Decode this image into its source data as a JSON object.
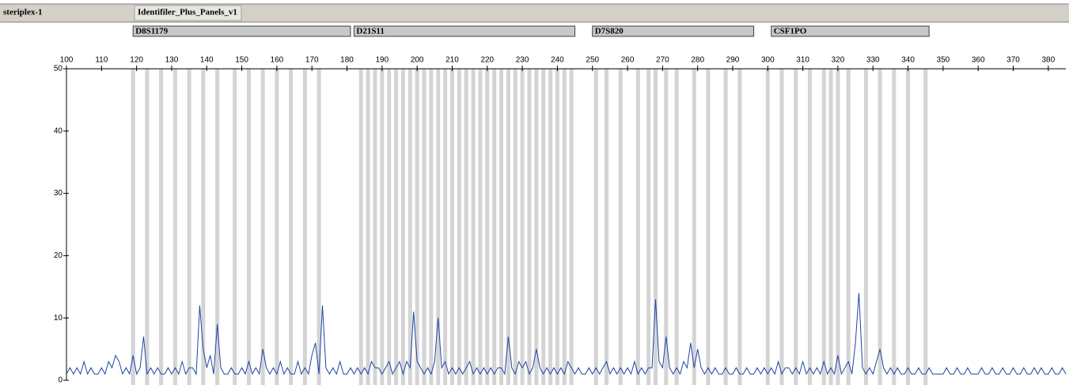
{
  "header": {
    "sample": "steriplex-1",
    "panel": "Identifiler_Plus_Panels_v1"
  },
  "chart_data": {
    "type": "line",
    "color": "#1f45a3",
    "xlim": [
      100,
      385
    ],
    "xticks": [
      100,
      110,
      120,
      130,
      140,
      150,
      160,
      170,
      180,
      190,
      200,
      210,
      220,
      230,
      240,
      250,
      260,
      270,
      280,
      290,
      300,
      310,
      320,
      330,
      340,
      350,
      360,
      370,
      380
    ],
    "ylim": [
      0,
      50
    ],
    "yticks": [
      0,
      10,
      20,
      30,
      40,
      50
    ],
    "bin_color": "#d4d4d4",
    "markers": [
      {
        "name": "D8S1179",
        "range": [
          119,
          181
        ],
        "bins": [
          119,
          123,
          127,
          131,
          135,
          139,
          143,
          148,
          152,
          156,
          160,
          164,
          168,
          172
        ]
      },
      {
        "name": "D21S11",
        "range": [
          182,
          245
        ],
        "bins": [
          184,
          186,
          188,
          190,
          192,
          194,
          196,
          198,
          200,
          202,
          204,
          206,
          208,
          210,
          212,
          214,
          216,
          218,
          220,
          222,
          224,
          226,
          228,
          230,
          232,
          234,
          236,
          238,
          240,
          242,
          244
        ]
      },
      {
        "name": "D7S820",
        "range": [
          250,
          296
        ],
        "bins": [
          251,
          254,
          258,
          263,
          266,
          268,
          271,
          274,
          279,
          283,
          288,
          292
        ]
      },
      {
        "name": "CSF1PO",
        "range": [
          301,
          346
        ],
        "bins": [
          300,
          304,
          308,
          312,
          316,
          318,
          320,
          323,
          328,
          332,
          336,
          340,
          345
        ]
      }
    ],
    "x": [
      100,
      101,
      102,
      103,
      104,
      105,
      106,
      107,
      108,
      109,
      110,
      111,
      112,
      113,
      114,
      115,
      116,
      117,
      118,
      119,
      120,
      121,
      122,
      123,
      124,
      125,
      126,
      127,
      128,
      129,
      130,
      131,
      132,
      133,
      134,
      135,
      136,
      137,
      138,
      139,
      140,
      141,
      142,
      143,
      144,
      145,
      146,
      147,
      148,
      149,
      150,
      151,
      152,
      153,
      154,
      155,
      156,
      157,
      158,
      159,
      160,
      161,
      162,
      163,
      164,
      165,
      166,
      167,
      168,
      169,
      170,
      171,
      172,
      173,
      174,
      175,
      176,
      177,
      178,
      179,
      180,
      181,
      182,
      183,
      184,
      185,
      186,
      187,
      188,
      189,
      190,
      191,
      192,
      193,
      194,
      195,
      196,
      197,
      198,
      199,
      200,
      201,
      202,
      203,
      204,
      205,
      206,
      207,
      208,
      209,
      210,
      211,
      212,
      213,
      214,
      215,
      216,
      217,
      218,
      219,
      220,
      221,
      222,
      223,
      224,
      225,
      226,
      227,
      228,
      229,
      230,
      231,
      232,
      233,
      234,
      235,
      236,
      237,
      238,
      239,
      240,
      241,
      242,
      243,
      244,
      245,
      246,
      247,
      248,
      249,
      250,
      251,
      252,
      253,
      254,
      255,
      256,
      257,
      258,
      259,
      260,
      261,
      262,
      263,
      264,
      265,
      266,
      267,
      268,
      269,
      270,
      271,
      272,
      273,
      274,
      275,
      276,
      277,
      278,
      279,
      280,
      281,
      282,
      283,
      284,
      285,
      286,
      287,
      288,
      289,
      290,
      291,
      292,
      293,
      294,
      295,
      296,
      297,
      298,
      299,
      300,
      301,
      302,
      303,
      304,
      305,
      306,
      307,
      308,
      309,
      310,
      311,
      312,
      313,
      314,
      315,
      316,
      317,
      318,
      319,
      320,
      321,
      322,
      323,
      324,
      325,
      326,
      327,
      328,
      329,
      330,
      331,
      332,
      333,
      334,
      335,
      336,
      337,
      338,
      339,
      340,
      341,
      342,
      343,
      344,
      345,
      346,
      347,
      348,
      349,
      350,
      351,
      352,
      353,
      354,
      355,
      356,
      357,
      358,
      359,
      360,
      361,
      362,
      363,
      364,
      365,
      366,
      367,
      368,
      369,
      370,
      371,
      372,
      373,
      374,
      375,
      376,
      377,
      378,
      379,
      380,
      381,
      382,
      383,
      384,
      385
    ],
    "values": [
      1,
      2,
      1,
      2,
      1,
      3,
      1,
      2,
      1,
      1,
      2,
      1,
      3,
      2,
      4,
      3,
      1,
      2,
      1,
      4,
      1,
      2,
      7,
      1,
      2,
      1,
      2,
      1,
      1,
      2,
      1,
      2,
      1,
      3,
      1,
      2,
      2,
      1,
      12,
      5,
      2,
      4,
      1,
      9,
      2,
      1,
      1,
      2,
      1,
      1,
      2,
      1,
      3,
      1,
      2,
      1,
      5,
      2,
      1,
      2,
      1,
      3,
      1,
      2,
      1,
      1,
      3,
      1,
      2,
      1,
      4,
      6,
      1,
      12,
      2,
      1,
      2,
      1,
      3,
      1,
      1,
      2,
      1,
      2,
      1,
      2,
      1,
      3,
      2,
      2,
      1,
      2,
      3,
      1,
      2,
      3,
      1,
      3,
      2,
      11,
      3,
      2,
      1,
      2,
      1,
      3,
      10,
      2,
      3,
      1,
      2,
      1,
      2,
      1,
      2,
      3,
      1,
      2,
      1,
      2,
      1,
      2,
      1,
      2,
      2,
      1,
      7,
      2,
      1,
      3,
      2,
      3,
      1,
      2,
      5,
      2,
      1,
      2,
      1,
      2,
      1,
      2,
      1,
      3,
      2,
      1,
      2,
      1,
      1,
      2,
      1,
      2,
      1,
      2,
      3,
      1,
      2,
      1,
      2,
      1,
      2,
      1,
      3,
      1,
      2,
      1,
      2,
      2,
      13,
      3,
      2,
      7,
      2,
      1,
      2,
      1,
      3,
      2,
      6,
      2,
      5,
      2,
      1,
      2,
      1,
      2,
      1,
      1,
      2,
      1,
      1,
      2,
      1,
      1,
      2,
      1,
      1,
      2,
      1,
      2,
      1,
      2,
      1,
      3,
      1,
      2,
      2,
      1,
      2,
      1,
      3,
      1,
      2,
      1,
      2,
      1,
      3,
      1,
      2,
      1,
      4,
      1,
      2,
      3,
      1,
      6,
      14,
      2,
      1,
      2,
      1,
      3,
      5,
      2,
      1,
      2,
      1,
      2,
      1,
      1,
      2,
      1,
      1,
      2,
      1,
      1,
      2,
      1,
      1,
      1,
      1,
      2,
      1,
      1,
      2,
      1,
      1,
      2,
      1,
      1,
      1,
      2,
      1,
      1,
      2,
      1,
      1,
      2,
      1,
      1,
      2,
      1,
      1,
      2,
      1,
      1,
      2,
      1,
      2,
      1,
      1,
      2,
      1,
      1,
      2,
      1
    ]
  }
}
